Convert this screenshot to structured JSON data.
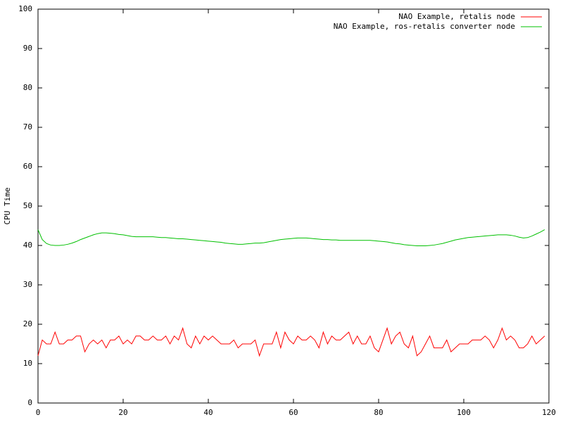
{
  "chart_data": {
    "type": "line",
    "y_label": "CPU Time",
    "x": [
      0,
      1,
      2,
      3,
      4,
      5,
      6,
      7,
      8,
      9,
      10,
      11,
      12,
      13,
      14,
      15,
      16,
      17,
      18,
      19,
      20,
      21,
      22,
      23,
      24,
      25,
      26,
      27,
      28,
      29,
      30,
      31,
      32,
      33,
      34,
      35,
      36,
      37,
      38,
      39,
      40,
      41,
      42,
      43,
      44,
      45,
      46,
      47,
      48,
      49,
      50,
      51,
      52,
      53,
      54,
      55,
      56,
      57,
      58,
      59,
      60,
      61,
      62,
      63,
      64,
      65,
      66,
      67,
      68,
      69,
      70,
      71,
      72,
      73,
      74,
      75,
      76,
      77,
      78,
      79,
      80,
      81,
      82,
      83,
      84,
      85,
      86,
      87,
      88,
      89,
      90,
      91,
      92,
      93,
      94,
      95,
      96,
      97,
      98,
      99,
      100,
      101,
      102,
      103,
      104,
      105,
      106,
      107,
      108,
      109,
      110,
      111,
      112,
      113,
      114,
      115,
      116,
      117,
      118,
      119
    ],
    "series": [
      {
        "name": "NAO Example, retalis node",
        "color": "#ff0000",
        "values": [
          12,
          16,
          15,
          15,
          18,
          15,
          15,
          16,
          16,
          17,
          17,
          13,
          15,
          16,
          15,
          16,
          14,
          16,
          16,
          17,
          15,
          16,
          15,
          17,
          17,
          16,
          16,
          17,
          16,
          16,
          17,
          15,
          17,
          16,
          19,
          15,
          14,
          17,
          15,
          17,
          16,
          17,
          16,
          15,
          15,
          15,
          16,
          14,
          15,
          15,
          15,
          16,
          12,
          15,
          15,
          15,
          18,
          14,
          18,
          16,
          15,
          17,
          16,
          16,
          17,
          16,
          14,
          18,
          15,
          17,
          16,
          16,
          17,
          18,
          15,
          17,
          15,
          15,
          17,
          14,
          13,
          16,
          19,
          15,
          17,
          18,
          15,
          14,
          17,
          12,
          13,
          15,
          17,
          14,
          14,
          14,
          16,
          13,
          14,
          15,
          15,
          15,
          16,
          16,
          16,
          17,
          16,
          14,
          16,
          19,
          16,
          17,
          16,
          14,
          14,
          15,
          17,
          15,
          16,
          17
        ]
      },
      {
        "name": "NAO Example, ros-retalis converter node",
        "color": "#00c000",
        "values": [
          44,
          41.5,
          40.5,
          40.1,
          40,
          40,
          40.1,
          40.3,
          40.6,
          41,
          41.5,
          41.9,
          42.3,
          42.7,
          43,
          43.2,
          43.2,
          43.1,
          43,
          42.8,
          42.7,
          42.5,
          42.3,
          42.2,
          42.2,
          42.2,
          42.2,
          42.2,
          42.1,
          42,
          42,
          41.9,
          41.8,
          41.7,
          41.7,
          41.6,
          41.5,
          41.4,
          41.3,
          41.2,
          41.1,
          41,
          40.9,
          40.8,
          40.6,
          40.5,
          40.4,
          40.3,
          40.3,
          40.4,
          40.5,
          40.6,
          40.6,
          40.7,
          40.9,
          41.1,
          41.3,
          41.5,
          41.6,
          41.7,
          41.8,
          41.9,
          41.9,
          41.9,
          41.8,
          41.7,
          41.6,
          41.5,
          41.5,
          41.4,
          41.4,
          41.3,
          41.3,
          41.3,
          41.3,
          41.3,
          41.3,
          41.3,
          41.3,
          41.2,
          41.1,
          41,
          40.9,
          40.7,
          40.5,
          40.4,
          40.2,
          40.1,
          40,
          39.9,
          39.9,
          39.9,
          40,
          40.1,
          40.3,
          40.5,
          40.8,
          41.1,
          41.4,
          41.6,
          41.8,
          42,
          42.1,
          42.2,
          42.3,
          42.4,
          42.5,
          42.6,
          42.7,
          42.7,
          42.7,
          42.6,
          42.4,
          42.1,
          41.9,
          42,
          42.4,
          42.9,
          43.4,
          44
        ]
      }
    ],
    "xlim": [
      0,
      120
    ],
    "ylim": [
      0,
      100
    ],
    "xticks": [
      0,
      20,
      40,
      60,
      80,
      100,
      120
    ],
    "yticks": [
      0,
      10,
      20,
      30,
      40,
      50,
      60,
      70,
      80,
      90,
      100
    ],
    "legend": "top-right",
    "grid": false
  }
}
